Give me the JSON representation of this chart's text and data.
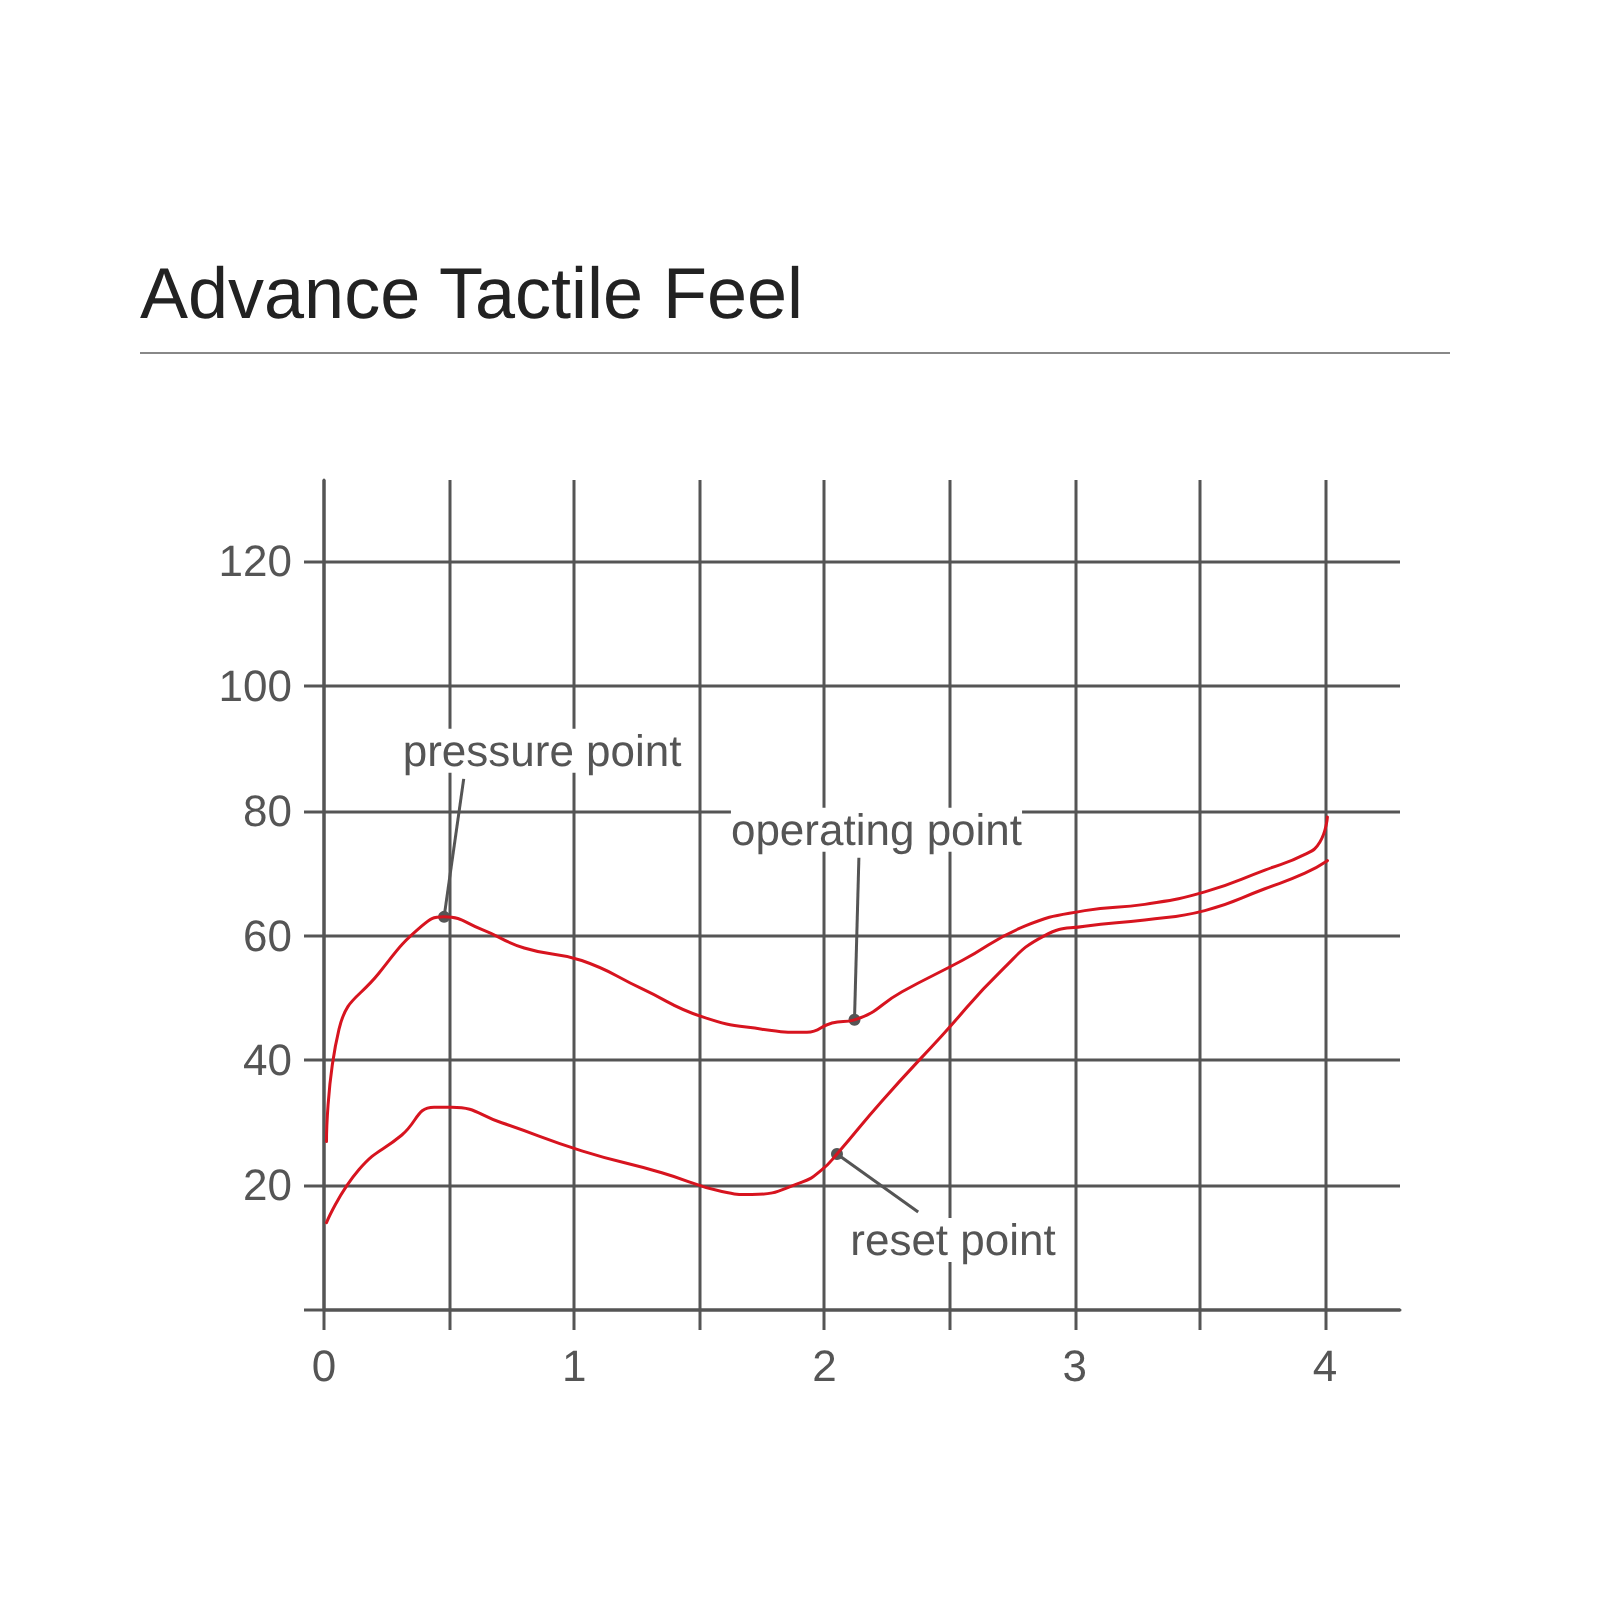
{
  "chart_data": {
    "type": "line",
    "title": "Advance Tactile Feel",
    "series": [
      {
        "color": "#d7141f",
        "x": [
          0.01,
          0.06,
          0.22,
          0.39,
          0.48,
          0.63,
          0.8,
          1.03,
          1.27,
          1.51,
          1.75,
          1.93,
          2.03,
          2.12,
          2.31,
          2.55,
          2.8,
          3.04,
          3.28,
          3.52,
          3.76,
          3.92,
          3.98,
          4.01
        ],
        "values": [
          27,
          45,
          54,
          61.5,
          63,
          61,
          58,
          56,
          51.5,
          47,
          45,
          44.5,
          46,
          46.5,
          51,
          56,
          61.5,
          64,
          65,
          67,
          70.5,
          73,
          75,
          79
        ]
      },
      {
        "color": "#d7141f",
        "x": [
          0.01,
          0.14,
          0.31,
          0.44,
          0.51,
          0.71,
          1.03,
          1.35,
          1.59,
          1.71,
          1.91,
          1.99,
          2.05,
          2.23,
          2.47,
          2.71,
          2.88,
          3.04,
          3.28,
          3.52,
          3.76,
          3.92,
          4.01
        ],
        "values": [
          14,
          22.5,
          28,
          32.5,
          32.5,
          30,
          25.5,
          22,
          19,
          18.5,
          20.5,
          22.5,
          25,
          33.5,
          44,
          54.5,
          60,
          61.5,
          62.5,
          64,
          67.5,
          70,
          72
        ]
      }
    ],
    "annotations": [
      {
        "text": "pressure point",
        "x": 0.48,
        "y": 63
      },
      {
        "text": "operating point",
        "x": 2.12,
        "y": 46.5
      },
      {
        "text": "reset point",
        "x": 2.05,
        "y": 25
      }
    ],
    "xlim": [
      0,
      4.3
    ],
    "xticks": [
      0,
      {
        "value": 0.5,
        "label": null
      },
      1,
      {
        "value": 1.5,
        "label": null
      },
      2,
      {
        "value": 2.5,
        "label": null
      },
      3,
      {
        "value": 3.5,
        "label": null
      },
      4
    ],
    "ylim": [
      0,
      133
    ],
    "yticks": [
      {
        "value": 0,
        "label": null
      },
      20,
      40,
      60,
      80,
      100,
      120
    ],
    "grid": true,
    "marker": "none",
    "line_style": "solid"
  }
}
